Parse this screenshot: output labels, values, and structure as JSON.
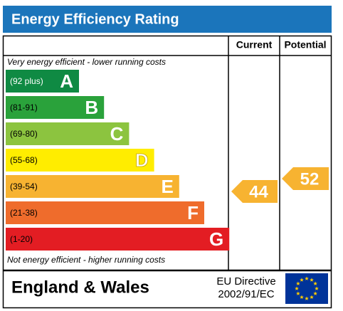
{
  "header": {
    "title": "Energy Efficiency Rating"
  },
  "columns": [
    "Current",
    "Potential"
  ],
  "top_note": "Very energy efficient - lower running costs",
  "bottom_note": "Not energy efficient - higher running costs",
  "bands": [
    {
      "range": "(92 plus)",
      "letter": "A",
      "color": "#0f8a43"
    },
    {
      "range": "(81-91)",
      "letter": "B",
      "color": "#2aa23b"
    },
    {
      "range": "(69-80)",
      "letter": "C",
      "color": "#8cc43f"
    },
    {
      "range": "(55-68)",
      "letter": "D",
      "color": "#ffed00"
    },
    {
      "range": "(39-54)",
      "letter": "E",
      "color": "#f7b331"
    },
    {
      "range": "(21-38)",
      "letter": "F",
      "color": "#ef6c2c"
    },
    {
      "range": "(1-20)",
      "letter": "G",
      "color": "#e31d23"
    }
  ],
  "current": {
    "value": 44,
    "color": "#f7b331"
  },
  "potential": {
    "value": 52,
    "color": "#f7b331"
  },
  "footer": {
    "region": "England & Wales",
    "directive": [
      "EU Directive",
      "2002/91/EC"
    ]
  }
}
